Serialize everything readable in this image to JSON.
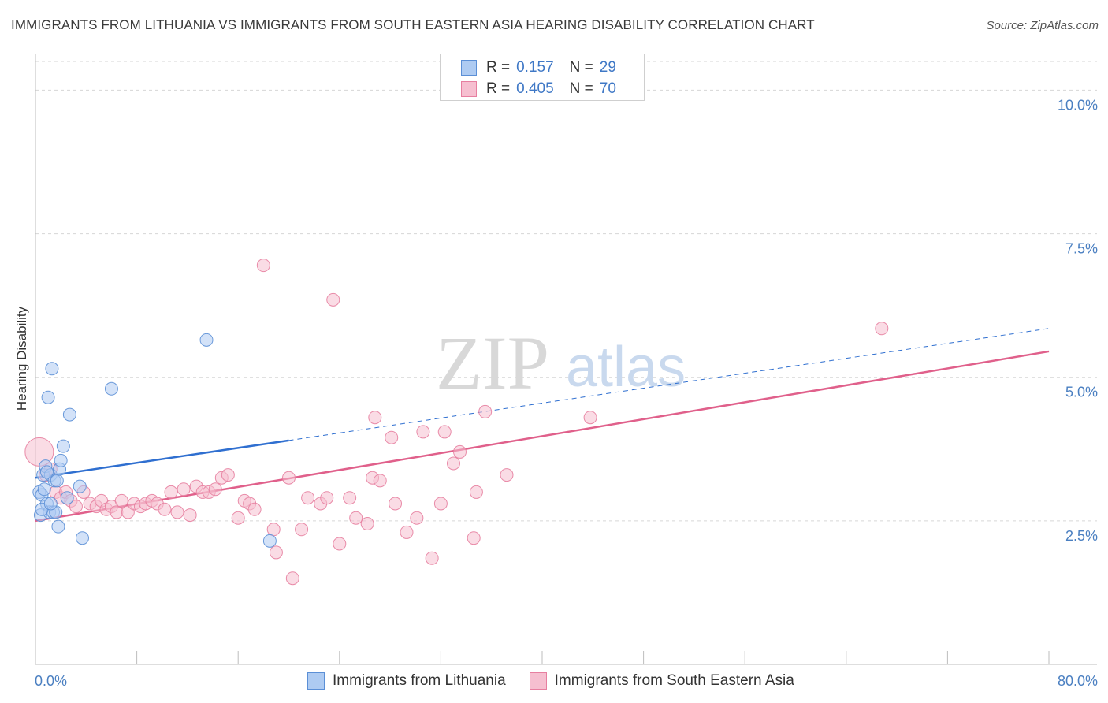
{
  "title": "IMMIGRANTS FROM LITHUANIA VS IMMIGRANTS FROM SOUTH EASTERN ASIA HEARING DISABILITY CORRELATION CHART",
  "source": "Source: ZipAtlas.com",
  "colors": {
    "blue_fill": "#aecbf2",
    "blue_stroke": "#5b8fd6",
    "blue_line": "#2f6fd0",
    "pink_fill": "#f6bfd0",
    "pink_stroke": "#e77fa0",
    "pink_line": "#e0608b",
    "tick_label": "#4a7fc1",
    "grid": "#d6d6d6"
  },
  "legend": {
    "rows": [
      {
        "r_label": "R =",
        "r_value": "0.157",
        "n_label": "N =",
        "n_value": "29"
      },
      {
        "r_label": "R =",
        "r_value": "0.405",
        "n_label": "N =",
        "n_value": "70"
      }
    ]
  },
  "watermark": {
    "zip": "ZIP",
    "atlas": "atlas"
  },
  "chart_data": {
    "type": "scatter",
    "title": "IMMIGRANTS FROM LITHUANIA VS IMMIGRANTS FROM SOUTH EASTERN ASIA HEARING DISABILITY CORRELATION CHART",
    "xlabel": "",
    "ylabel": "Hearing Disability",
    "xlim": [
      0,
      80
    ],
    "ylim": [
      0,
      10.5
    ],
    "x_tick_labels": [
      "0.0%",
      "80.0%"
    ],
    "y_ticks": [
      2.5,
      5.0,
      7.5,
      10.0
    ],
    "y_tick_labels": [
      "2.5%",
      "5.0%",
      "7.5%",
      "10.0%"
    ],
    "grid": true,
    "series": [
      {
        "name": "Immigrants from Lithuania",
        "color": "blue",
        "trend": {
          "x0": 0,
          "y0": 3.25,
          "x1": 20,
          "y1": 3.9,
          "extend_dashed_to_x": 80,
          "extend_y": 5.85
        },
        "points": [
          [
            0.3,
            3.0
          ],
          [
            0.4,
            2.6
          ],
          [
            0.5,
            2.95
          ],
          [
            0.6,
            3.3
          ],
          [
            0.8,
            3.45
          ],
          [
            0.9,
            2.8
          ],
          [
            1.0,
            4.65
          ],
          [
            1.1,
            2.65
          ],
          [
            1.2,
            3.3
          ],
          [
            1.3,
            5.15
          ],
          [
            1.4,
            2.65
          ],
          [
            1.5,
            3.2
          ],
          [
            1.6,
            2.65
          ],
          [
            1.7,
            3.2
          ],
          [
            1.8,
            2.4
          ],
          [
            1.9,
            3.4
          ],
          [
            2.0,
            3.55
          ],
          [
            2.2,
            3.8
          ],
          [
            2.5,
            2.9
          ],
          [
            2.7,
            4.35
          ],
          [
            3.5,
            3.1
          ],
          [
            3.7,
            2.2
          ],
          [
            6.0,
            4.8
          ],
          [
            13.5,
            5.65
          ],
          [
            0.7,
            3.05
          ],
          [
            0.5,
            2.7
          ],
          [
            1.2,
            2.8
          ],
          [
            0.9,
            3.35
          ],
          [
            18.5,
            2.15
          ]
        ]
      },
      {
        "name": "Immigrants from South Eastern Asia",
        "color": "pink",
        "trend": {
          "x0": 0,
          "y0": 2.5,
          "x1": 80,
          "y1": 5.45
        },
        "points": [
          [
            0.3,
            3.7
          ],
          [
            0.8,
            3.3
          ],
          [
            1.2,
            3.4
          ],
          [
            1.6,
            3.0
          ],
          [
            2.0,
            2.9
          ],
          [
            2.4,
            3.0
          ],
          [
            2.8,
            2.85
          ],
          [
            3.2,
            2.75
          ],
          [
            3.8,
            3.0
          ],
          [
            4.3,
            2.8
          ],
          [
            4.8,
            2.75
          ],
          [
            5.2,
            2.85
          ],
          [
            5.6,
            2.7
          ],
          [
            6.0,
            2.75
          ],
          [
            6.4,
            2.65
          ],
          [
            6.8,
            2.85
          ],
          [
            7.3,
            2.65
          ],
          [
            7.8,
            2.8
          ],
          [
            8.3,
            2.75
          ],
          [
            8.7,
            2.8
          ],
          [
            9.2,
            2.85
          ],
          [
            9.6,
            2.8
          ],
          [
            10.2,
            2.7
          ],
          [
            10.7,
            3.0
          ],
          [
            11.2,
            2.65
          ],
          [
            11.7,
            3.05
          ],
          [
            12.2,
            2.6
          ],
          [
            12.7,
            3.1
          ],
          [
            13.2,
            3.0
          ],
          [
            13.7,
            3.0
          ],
          [
            14.2,
            3.05
          ],
          [
            14.7,
            3.25
          ],
          [
            15.2,
            3.3
          ],
          [
            16.0,
            2.55
          ],
          [
            16.5,
            2.85
          ],
          [
            16.9,
            2.8
          ],
          [
            17.3,
            2.7
          ],
          [
            18.0,
            6.95
          ],
          [
            18.8,
            2.35
          ],
          [
            19.0,
            1.95
          ],
          [
            20.0,
            3.25
          ],
          [
            20.3,
            1.5
          ],
          [
            21.0,
            2.35
          ],
          [
            21.5,
            2.9
          ],
          [
            22.5,
            2.8
          ],
          [
            23.0,
            2.9
          ],
          [
            23.5,
            6.35
          ],
          [
            24.0,
            2.1
          ],
          [
            24.8,
            2.9
          ],
          [
            25.3,
            2.55
          ],
          [
            26.2,
            2.45
          ],
          [
            26.6,
            3.25
          ],
          [
            27.2,
            3.2
          ],
          [
            26.8,
            4.3
          ],
          [
            28.1,
            3.95
          ],
          [
            28.4,
            2.8
          ],
          [
            29.3,
            2.3
          ],
          [
            30.1,
            2.55
          ],
          [
            30.6,
            4.05
          ],
          [
            31.3,
            1.85
          ],
          [
            32.3,
            4.05
          ],
          [
            32.0,
            2.8
          ],
          [
            33.0,
            3.5
          ],
          [
            33.5,
            3.7
          ],
          [
            34.6,
            2.2
          ],
          [
            34.8,
            3.0
          ],
          [
            35.5,
            4.4
          ],
          [
            37.2,
            3.3
          ],
          [
            43.8,
            4.3
          ],
          [
            66.8,
            5.85
          ]
        ]
      }
    ]
  },
  "bottom_legend": {
    "items": [
      {
        "label": "Immigrants from Lithuania"
      },
      {
        "label": "Immigrants from South Eastern Asia"
      }
    ]
  }
}
